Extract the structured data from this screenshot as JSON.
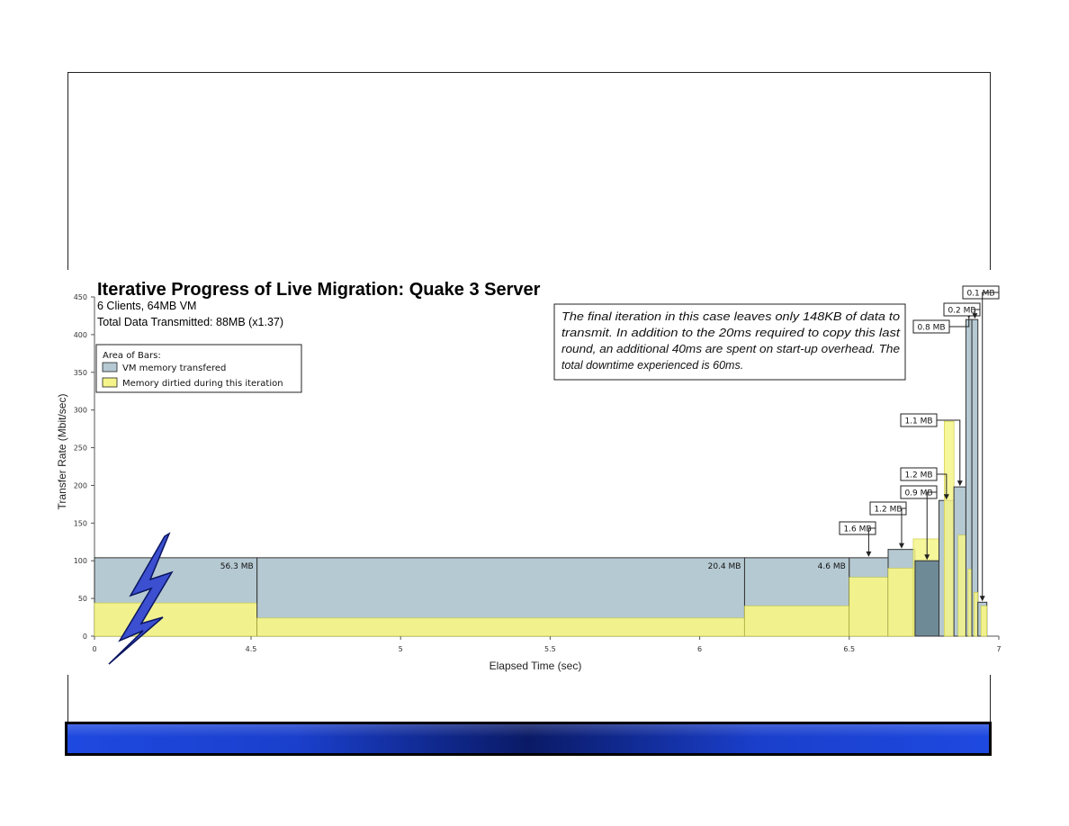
{
  "chart_data": {
    "type": "bar",
    "title": "Iterative Progress of Live Migration: Quake 3 Server",
    "subtitle_lines": [
      "6 Clients, 64MB VM",
      "Total Data Transmitted: 88MB (x1.37)"
    ],
    "xlabel": "Elapsed Time (sec)",
    "ylabel": "Transfer Rate (Mbit/sec)",
    "xlim": [
      0,
      7
    ],
    "ylim": [
      0,
      450
    ],
    "x_ticks": [
      {
        "value": 0,
        "label": "0"
      },
      {
        "value": 4.5,
        "label": "4.5"
      },
      {
        "value": 5,
        "label": "5"
      },
      {
        "value": 5.5,
        "label": "5.5"
      },
      {
        "value": 6,
        "label": "6"
      },
      {
        "value": 6.5,
        "label": "6.5"
      },
      {
        "value": 7,
        "label": "7"
      }
    ],
    "y_ticks": [
      0,
      50,
      100,
      150,
      200,
      250,
      300,
      350,
      400,
      450
    ],
    "legend": {
      "title": "Area of Bars:",
      "placement": "top-left",
      "entries": [
        {
          "label": "VM memory transfered",
          "color": "#b5c9d2"
        },
        {
          "label": "Memory dirtied during this iteration",
          "color": "#f4f48a"
        }
      ]
    },
    "annotation": [
      "The final iteration in this case leaves only 148KB of data to",
      "transmit.  In addition to the 20ms required to copy this last",
      "round, an additional 40ms are spent on start-up overhead.  The",
      "total downtime experienced is 60ms."
    ],
    "iterations": [
      {
        "x0": 0,
        "x1": 4.52,
        "transfer": 104,
        "dirtied": 44,
        "label": "56.3 MB",
        "label_style": "inside"
      },
      {
        "x0": 4.52,
        "x1": 6.15,
        "transfer": 104,
        "dirtied": 24,
        "label": "20.4 MB",
        "label_style": "inside"
      },
      {
        "x0": 6.15,
        "x1": 6.5,
        "transfer": 104,
        "dirtied": 40,
        "label": "4.6 MB",
        "label_style": "inside"
      },
      {
        "x0": 6.5,
        "x1": 6.63,
        "transfer": 104,
        "dirtied": 78,
        "label": "1.6 MB",
        "label_style": "box"
      },
      {
        "x0": 6.63,
        "x1": 6.72,
        "transfer": 115,
        "dirtied": 90,
        "label": "1.2 MB",
        "label_style": "box"
      },
      {
        "x0": 6.72,
        "x1": 6.8,
        "transfer": 100,
        "dirtied": 129,
        "label": "0.9 MB",
        "label_style": "box"
      },
      {
        "x0": 6.8,
        "x1": 6.85,
        "transfer": 180,
        "dirtied": 285,
        "label": "1.2 MB",
        "label_style": "box"
      },
      {
        "x0": 6.85,
        "x1": 6.89,
        "transfer": 198,
        "dirtied": 134,
        "label": "1.1 MB",
        "label_style": "box"
      },
      {
        "x0": 6.89,
        "x1": 6.91,
        "transfer": 420,
        "dirtied": 89,
        "label": "0.8 MB",
        "label_style": "box"
      },
      {
        "x0": 6.91,
        "x1": 6.93,
        "transfer": 420,
        "dirtied": 58,
        "label": "0.2 MB",
        "label_style": "box"
      },
      {
        "x0": 6.93,
        "x1": 6.96,
        "transfer": 45,
        "dirtied": 40,
        "label": "0.1 MB",
        "label_style": "box"
      }
    ]
  }
}
